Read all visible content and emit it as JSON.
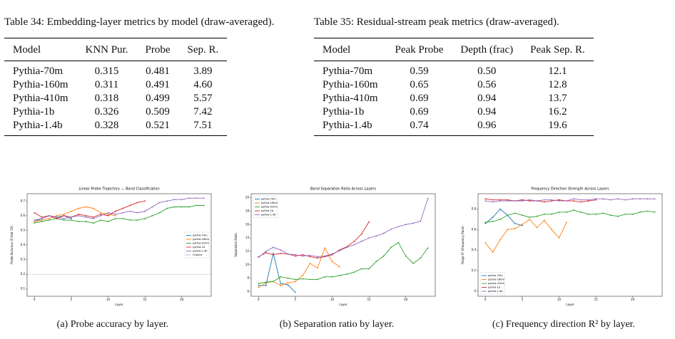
{
  "tables": [
    {
      "caption": "Table 34: Embedding-layer metrics by model (draw-averaged).",
      "header": [
        "Model",
        "KNN Pur.",
        "Probe",
        "Sep. R."
      ],
      "rows": [
        [
          "Pythia-70m",
          "0.315",
          "0.481",
          "3.89"
        ],
        [
          "Pythia-160m",
          "0.311",
          "0.491",
          "4.60"
        ],
        [
          "Pythia-410m",
          "0.318",
          "0.499",
          "5.57"
        ],
        [
          "Pythia-1b",
          "0.326",
          "0.509",
          "7.42"
        ],
        [
          "Pythia-1.4b",
          "0.328",
          "0.521",
          "7.51"
        ]
      ]
    },
    {
      "caption": "Table 35: Residual-stream peak metrics (draw-averaged).",
      "header": [
        "Model",
        "Peak Probe",
        "Depth (frac)",
        "Peak Sep. R."
      ],
      "rows": [
        [
          "Pythia-70m",
          "0.59",
          "0.50",
          "12.1"
        ],
        [
          "Pythia-160m",
          "0.65",
          "0.56",
          "12.8"
        ],
        [
          "Pythia-410m",
          "0.69",
          "0.94",
          "13.7"
        ],
        [
          "Pythia-1b",
          "0.69",
          "0.94",
          "16.2"
        ],
        [
          "Pythia-1.4b",
          "0.74",
          "0.96",
          "19.6"
        ]
      ]
    }
  ],
  "figures": [
    {
      "caption": "(a) Probe accuracy by layer.",
      "chart_data": {
        "type": "line",
        "title": "Linear Probe Trajectory — Band Classification",
        "x_label": "Layer",
        "y_label": "Probe Accuracy (5-fold CV)",
        "xlim": [
          -1,
          24
        ],
        "xticks": [
          0,
          5,
          10,
          15,
          20
        ],
        "ylim": [
          0.05,
          0.75
        ],
        "yticks": [
          0.1,
          0.2,
          0.3,
          0.4,
          0.5,
          0.6,
          0.7
        ],
        "legend": "right",
        "reference_line": {
          "name": "Chance",
          "value": 0.2,
          "color": "#999999"
        },
        "series": [
          {
            "name": "pythia-70m",
            "color": "#1f77b4",
            "values": [
              0.56,
              0.58,
              0.6,
              0.59,
              0.6,
              0.58
            ]
          },
          {
            "name": "pythia-160m",
            "color": "#ff7f0e",
            "values": [
              0.56,
              0.57,
              0.58,
              0.6,
              0.61,
              0.63,
              0.65,
              0.66,
              0.65,
              0.62,
              0.61,
              0.6
            ]
          },
          {
            "name": "pythia-410m",
            "color": "#2ca02c",
            "values": [
              0.55,
              0.56,
              0.57,
              0.58,
              0.57,
              0.57,
              0.56,
              0.56,
              0.55,
              0.57,
              0.56,
              0.58,
              0.58,
              0.57,
              0.57,
              0.58,
              0.6,
              0.62,
              0.65,
              0.66,
              0.66,
              0.66,
              0.67,
              0.67
            ]
          },
          {
            "name": "pythia-1b",
            "color": "#d62728",
            "values": [
              0.62,
              0.59,
              0.6,
              0.58,
              0.6,
              0.59,
              0.61,
              0.6,
              0.59,
              0.61,
              0.6,
              0.63,
              0.65,
              0.67,
              0.69,
              0.7
            ]
          },
          {
            "name": "pythia-1.4b",
            "color": "#9467bd",
            "values": [
              0.57,
              0.58,
              0.6,
              0.59,
              0.58,
              0.59,
              0.6,
              0.59,
              0.58,
              0.6,
              0.62,
              0.61,
              0.62,
              0.63,
              0.62,
              0.63,
              0.66,
              0.69,
              0.7,
              0.71,
              0.71,
              0.72,
              0.72,
              0.72
            ]
          }
        ]
      }
    },
    {
      "caption": "(b) Separation ratio by layer.",
      "chart_data": {
        "type": "line",
        "title": "Band Separation Ratio Across Layers",
        "x_label": "Layer",
        "y_label": "Separation Ratio",
        "xlim": [
          -1,
          24
        ],
        "xticks": [
          0,
          5,
          10,
          15,
          20
        ],
        "ylim": [
          5.3,
          20.6
        ],
        "yticks": [
          6,
          8,
          10,
          12,
          14,
          16,
          18,
          20
        ],
        "legend": "upper left",
        "series": [
          {
            "name": "pythia-70m",
            "color": "#1f77b4",
            "values": [
              6.9,
              6.9,
              11.7,
              7.2,
              7.0,
              5.9
            ]
          },
          {
            "name": "pythia-160m",
            "color": "#ff7f0e",
            "values": [
              6.6,
              7.3,
              7.5,
              6.9,
              7.3,
              7.5,
              8.4,
              10.2,
              9.5,
              12.5,
              10.5,
              9.7
            ]
          },
          {
            "name": "pythia-410m",
            "color": "#2ca02c",
            "values": [
              7.2,
              7.4,
              7.5,
              8.2,
              8.0,
              7.8,
              7.9,
              7.8,
              7.8,
              8.2,
              8.2,
              8.4,
              8.6,
              8.9,
              9.4,
              9.4,
              10.5,
              11.3,
              12.6,
              13.3,
              11.3,
              10.2,
              11.0,
              12.5
            ]
          },
          {
            "name": "pythia-1b",
            "color": "#d62728",
            "values": [
              11.2,
              11.8,
              11.5,
              11.7,
              11.6,
              11.3,
              11.5,
              11.2,
              11.0,
              11.2,
              11.5,
              12.2,
              12.7,
              13.5,
              14.6,
              16.4
            ]
          },
          {
            "name": "pythia-1.4b",
            "color": "#9467bd",
            "values": [
              11.1,
              12.0,
              12.6,
              12.2,
              11.6,
              11.5,
              11.3,
              11.4,
              11.2,
              11.3,
              11.6,
              12.1,
              12.6,
              13.0,
              13.5,
              14.0,
              14.3,
              14.7,
              15.3,
              15.7,
              16.0,
              16.2,
              16.5,
              19.9
            ]
          }
        ]
      }
    },
    {
      "caption": "(c) Frequency direction R² by layer.",
      "chart_data": {
        "type": "line",
        "title": "Frequency Direction Strength Across Layers",
        "x_label": "Layer",
        "y_label": "Ridge R² (Frequency Rank)",
        "xlim": [
          -1,
          24
        ],
        "xticks": [
          0,
          5,
          10,
          15,
          20
        ],
        "ylim": [
          -0.05,
          0.95
        ],
        "yticks": [
          0.0,
          0.2,
          0.4,
          0.6,
          0.8
        ],
        "legend": "lower left",
        "series": [
          {
            "name": "pythia-70m",
            "color": "#1f77b4",
            "values": [
              0.66,
              0.72,
              0.8,
              0.74,
              0.66,
              0.64
            ]
          },
          {
            "name": "pythia-160m",
            "color": "#ff7f0e",
            "values": [
              0.47,
              0.38,
              0.5,
              0.6,
              0.61,
              0.65,
              0.7,
              0.62,
              0.69,
              0.6,
              0.52,
              0.67
            ]
          },
          {
            "name": "pythia-410m",
            "color": "#2ca02c",
            "values": [
              0.67,
              0.68,
              0.7,
              0.74,
              0.76,
              0.74,
              0.72,
              0.73,
              0.75,
              0.75,
              0.77,
              0.77,
              0.79,
              0.77,
              0.75,
              0.75,
              0.76,
              0.74,
              0.73,
              0.75,
              0.75,
              0.77,
              0.78,
              0.77
            ]
          },
          {
            "name": "pythia-1b",
            "color": "#d62728",
            "values": [
              0.9,
              0.89,
              0.89,
              0.89,
              0.88,
              0.89,
              0.88,
              0.88,
              0.87,
              0.88,
              0.89,
              0.88,
              0.88,
              0.87,
              0.88,
              0.89
            ]
          },
          {
            "name": "pythia-1.4b",
            "color": "#9467bd",
            "values": [
              0.88,
              0.87,
              0.88,
              0.88,
              0.88,
              0.88,
              0.89,
              0.88,
              0.89,
              0.89,
              0.88,
              0.88,
              0.9,
              0.89,
              0.89,
              0.9,
              0.9,
              0.89,
              0.9,
              0.89,
              0.9,
              0.9,
              0.9,
              0.9
            ]
          }
        ]
      }
    }
  ]
}
